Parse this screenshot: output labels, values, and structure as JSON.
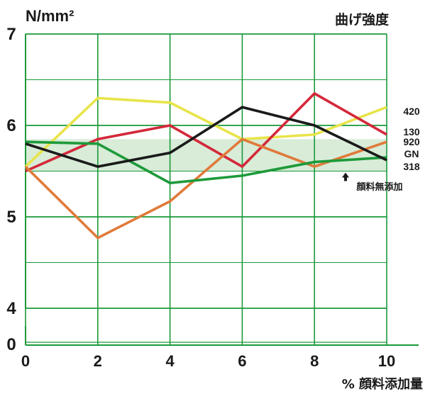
{
  "chart_data": {
    "type": "line",
    "title": "曲げ強度",
    "ylabel": "N/mm²",
    "xlabel": "% 顔料添加量",
    "x": [
      0,
      2,
      4,
      6,
      8,
      10
    ],
    "xlim": [
      0,
      10
    ],
    "ylim": [
      4,
      7
    ],
    "y_break_zero_label": "0",
    "yticks": [
      4,
      5,
      6,
      7
    ],
    "grid": true,
    "grid_color": "#1a9a3a",
    "baseline_band": {
      "label": "顔料無添加",
      "range": [
        5.5,
        5.85
      ],
      "color": "#d8ecd8"
    },
    "series": [
      {
        "name": "420",
        "color": "#e8e44a",
        "values": [
          5.55,
          6.3,
          6.25,
          5.85,
          5.9,
          6.2
        ]
      },
      {
        "name": "130",
        "color": "#d4283a",
        "values": [
          5.5,
          5.85,
          6.0,
          5.55,
          6.35,
          5.9
        ]
      },
      {
        "name": "920",
        "color": "#e07a3a",
        "values": [
          5.55,
          4.77,
          5.17,
          5.85,
          5.55,
          5.82
        ]
      },
      {
        "name": "GN",
        "color": "#1e9a3a",
        "values": [
          5.82,
          5.8,
          5.37,
          5.45,
          5.6,
          5.65
        ]
      },
      {
        "name": "318",
        "color": "#1a1a1a",
        "values": [
          5.8,
          5.55,
          5.7,
          6.2,
          6.0,
          5.62
        ]
      }
    ]
  }
}
